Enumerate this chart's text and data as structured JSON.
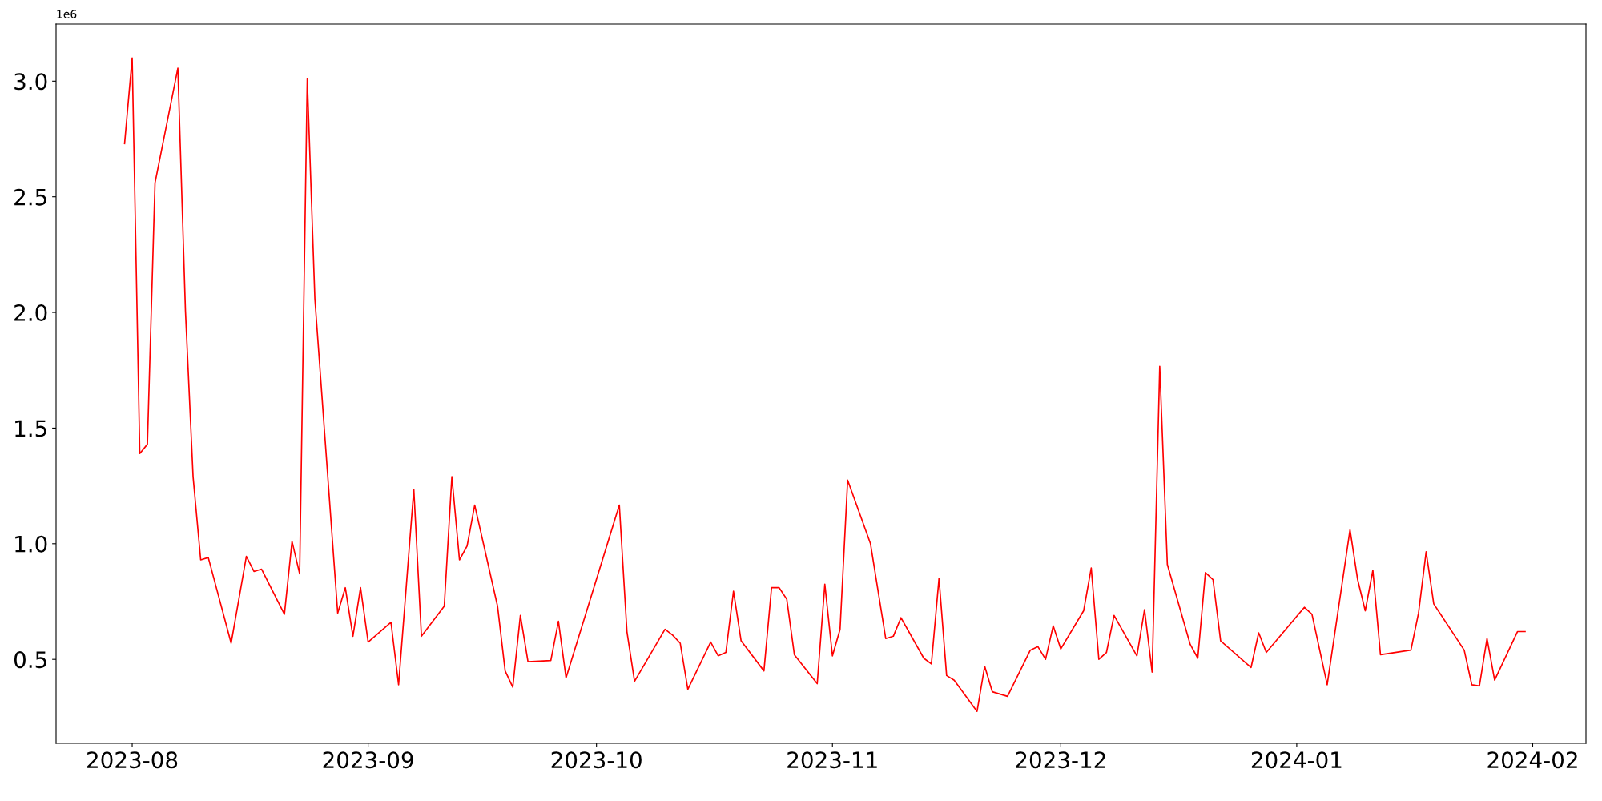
{
  "chart_data": {
    "type": "line",
    "x": [
      "2023-07-31",
      "2023-08-01",
      "2023-08-02",
      "2023-08-03",
      "2023-08-04",
      "2023-08-07",
      "2023-08-08",
      "2023-08-09",
      "2023-08-10",
      "2023-08-11",
      "2023-08-14",
      "2023-08-16",
      "2023-08-17",
      "2023-08-18",
      "2023-08-21",
      "2023-08-22",
      "2023-08-23",
      "2023-08-24",
      "2023-08-25",
      "2023-08-28",
      "2023-08-29",
      "2023-08-30",
      "2023-08-31",
      "2023-09-01",
      "2023-09-04",
      "2023-09-05",
      "2023-09-07",
      "2023-09-08",
      "2023-09-11",
      "2023-09-12",
      "2023-09-13",
      "2023-09-14",
      "2023-09-15",
      "2023-09-18",
      "2023-09-19",
      "2023-09-20",
      "2023-09-21",
      "2023-09-22",
      "2023-09-25",
      "2023-09-26",
      "2023-09-27",
      "2023-10-04",
      "2023-10-05",
      "2023-10-06",
      "2023-10-10",
      "2023-10-11",
      "2023-10-12",
      "2023-10-13",
      "2023-10-16",
      "2023-10-17",
      "2023-10-18",
      "2023-10-19",
      "2023-10-20",
      "2023-10-23",
      "2023-10-24",
      "2023-10-25",
      "2023-10-26",
      "2023-10-27",
      "2023-10-30",
      "2023-10-31",
      "2023-11-01",
      "2023-11-02",
      "2023-11-03",
      "2023-11-06",
      "2023-11-08",
      "2023-11-09",
      "2023-11-10",
      "2023-11-13",
      "2023-11-14",
      "2023-11-15",
      "2023-11-16",
      "2023-11-17",
      "2023-11-20",
      "2023-11-21",
      "2023-11-22",
      "2023-11-24",
      "2023-11-27",
      "2023-11-28",
      "2023-11-29",
      "2023-11-30",
      "2023-12-01",
      "2023-12-04",
      "2023-12-05",
      "2023-12-06",
      "2023-12-07",
      "2023-12-08",
      "2023-12-11",
      "2023-12-12",
      "2023-12-13",
      "2023-12-14",
      "2023-12-15",
      "2023-12-18",
      "2023-12-19",
      "2023-12-20",
      "2023-12-21",
      "2023-12-22",
      "2023-12-26",
      "2023-12-27",
      "2023-12-28",
      "2024-01-02",
      "2024-01-03",
      "2024-01-05",
      "2024-01-08",
      "2024-01-09",
      "2024-01-10",
      "2024-01-11",
      "2024-01-12",
      "2024-01-16",
      "2024-01-17",
      "2024-01-18",
      "2024-01-19",
      "2024-01-23",
      "2024-01-24",
      "2024-01-25",
      "2024-01-26",
      "2024-01-27",
      "2024-01-30",
      "2024-01-31"
    ],
    "series": [
      {
        "color": "#ff0000",
        "values": [
          2.73,
          3.1,
          1.39,
          1.43,
          2.56,
          3.056,
          2.005,
          1.29,
          0.93,
          0.94,
          0.57,
          0.945,
          0.88,
          0.89,
          0.695,
          1.01,
          0.87,
          3.01,
          2.06,
          0.7,
          0.81,
          0.6,
          0.81,
          0.575,
          0.66,
          0.39,
          1.235,
          0.6,
          0.73,
          1.29,
          0.93,
          0.99,
          1.167,
          0.73,
          0.45,
          0.38,
          0.69,
          0.49,
          0.495,
          0.665,
          0.42,
          1.167,
          0.62,
          0.405,
          0.63,
          0.605,
          0.57,
          0.37,
          0.575,
          0.515,
          0.53,
          0.795,
          0.58,
          0.45,
          0.81,
          0.81,
          0.76,
          0.52,
          0.395,
          0.825,
          0.515,
          0.63,
          1.275,
          1.0,
          0.59,
          0.6,
          0.68,
          0.505,
          0.48,
          0.85,
          0.43,
          0.41,
          0.275,
          0.47,
          0.36,
          0.34,
          0.54,
          0.555,
          0.5,
          0.645,
          0.545,
          0.71,
          0.895,
          0.5,
          0.53,
          0.69,
          0.515,
          0.715,
          0.445,
          1.767,
          0.91,
          0.565,
          0.505,
          0.875,
          0.845,
          0.58,
          0.465,
          0.615,
          0.53,
          0.725,
          0.695,
          0.39,
          1.06,
          0.845,
          0.71,
          0.885,
          0.52,
          0.54,
          0.7,
          0.965,
          0.74,
          0.54,
          0.39,
          0.385,
          0.59,
          0.41,
          0.62,
          0.62
        ]
      }
    ],
    "xlim": [
      "2023-07-22",
      "2024-02-08"
    ],
    "xticks": [
      {
        "value": "2023-08-01",
        "label": "2023-08"
      },
      {
        "value": "2023-09-01",
        "label": "2023-09"
      },
      {
        "value": "2023-10-01",
        "label": "2023-10"
      },
      {
        "value": "2023-11-01",
        "label": "2023-11"
      },
      {
        "value": "2023-12-01",
        "label": "2023-12"
      },
      {
        "value": "2024-01-01",
        "label": "2024-01"
      },
      {
        "value": "2024-02-01",
        "label": "2024-02"
      }
    ],
    "ylim": [
      0.137,
      3.247
    ],
    "yticks": [
      0.5,
      {
        "value": 1,
        "label": "1.0"
      },
      1.5,
      {
        "value": 2,
        "label": "2.0"
      },
      2.5,
      {
        "value": 3,
        "label": "3.0"
      }
    ],
    "annotations": [
      "1e6"
    ],
    "grid": false,
    "line_style": "solid",
    "marker": "none"
  }
}
